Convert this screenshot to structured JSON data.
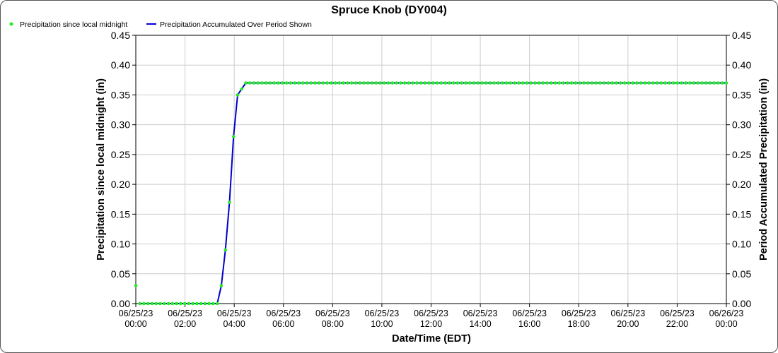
{
  "chart_data": {
    "type": "line",
    "title": "Spruce Knob (DY004)",
    "xlabel": "Date/Time (EDT)",
    "ylabel": "Precipitation since local midnight (in)",
    "y2label": "Period Accumulated Precipitation (in)",
    "ylim": [
      0,
      0.45
    ],
    "y_ticks": [
      "0.00",
      "0.05",
      "0.10",
      "0.15",
      "0.20",
      "0.25",
      "0.30",
      "0.35",
      "0.40",
      "0.45"
    ],
    "x_ticks": [
      {
        "date": "06/25/23",
        "time": "00:00"
      },
      {
        "date": "06/25/23",
        "time": "02:00"
      },
      {
        "date": "06/25/23",
        "time": "04:00"
      },
      {
        "date": "06/25/23",
        "time": "06:00"
      },
      {
        "date": "06/25/23",
        "time": "08:00"
      },
      {
        "date": "06/25/23",
        "time": "10:00"
      },
      {
        "date": "06/25/23",
        "time": "12:00"
      },
      {
        "date": "06/25/23",
        "time": "14:00"
      },
      {
        "date": "06/25/23",
        "time": "16:00"
      },
      {
        "date": "06/25/23",
        "time": "18:00"
      },
      {
        "date": "06/25/23",
        "time": "20:00"
      },
      {
        "date": "06/25/23",
        "time": "22:00"
      },
      {
        "date": "06/26/23",
        "time": "00:00"
      }
    ],
    "grid": true,
    "legend_position": "top-left",
    "sample_interval_minutes": 10,
    "series": [
      {
        "name": "Precipitation since local midnight",
        "style": "markers",
        "color": "#22ee22",
        "note_values": "one value every 10 minutes from 06/25/23 00:00 through 06/26/23 00:00",
        "values": [
          0.03,
          0,
          0,
          0,
          0,
          0,
          0,
          0,
          0,
          0,
          0,
          0,
          0,
          0,
          0,
          0,
          0,
          0,
          0,
          0,
          0,
          0.03,
          0.09,
          0.17,
          0.28,
          0.35,
          0.36,
          0.37,
          0.37,
          0.37,
          0.37,
          0.37,
          0.37,
          0.37,
          0.37,
          0.37,
          0.37,
          0.37,
          0.37,
          0.37,
          0.37,
          0.37,
          0.37,
          0.37,
          0.37,
          0.37,
          0.37,
          0.37,
          0.37,
          0.37,
          0.37,
          0.37,
          0.37,
          0.37,
          0.37,
          0.37,
          0.37,
          0.37,
          0.37,
          0.37,
          0.37,
          0.37,
          0.37,
          0.37,
          0.37,
          0.37,
          0.37,
          0.37,
          0.37,
          0.37,
          0.37,
          0.37,
          0.37,
          0.37,
          0.37,
          0.37,
          0.37,
          0.37,
          0.37,
          0.37,
          0.37,
          0.37,
          0.37,
          0.37,
          0.37,
          0.37,
          0.37,
          0.37,
          0.37,
          0.37,
          0.37,
          0.37,
          0.37,
          0.37,
          0.37,
          0.37,
          0.37,
          0.37,
          0.37,
          0.37,
          0.37,
          0.37,
          0.37,
          0.37,
          0.37,
          0.37,
          0.37,
          0.37,
          0.37,
          0.37,
          0.37,
          0.37,
          0.37,
          0.37,
          0.37,
          0.37,
          0.37,
          0.37,
          0.37,
          0.37,
          0.37,
          0.37,
          0.37,
          0.37,
          0.37,
          0.37,
          0.37,
          0.37,
          0.37,
          0.37,
          0.37,
          0.37,
          0.37,
          0.37,
          0.37,
          0.37,
          0.37,
          0.37,
          0.37,
          0.37,
          0.37,
          0.37,
          0.37,
          0.37,
          0.37,
          0.37
        ]
      },
      {
        "name": "Precipitation Accumulated Over Period Shown",
        "style": "line",
        "color": "#0000cc",
        "values": [
          null,
          0,
          0,
          0,
          0,
          0,
          0,
          0,
          0,
          0,
          0,
          0,
          0,
          0,
          0,
          0,
          0,
          0,
          0,
          0,
          0,
          0.03,
          0.09,
          0.17,
          0.28,
          0.35,
          0.36,
          0.37,
          0.37,
          0.37,
          0.37,
          0.37,
          0.37,
          0.37,
          0.37,
          0.37,
          0.37,
          0.37,
          0.37,
          0.37,
          0.37,
          0.37,
          0.37,
          0.37,
          0.37,
          0.37,
          0.37,
          0.37,
          0.37,
          0.37,
          0.37,
          0.37,
          0.37,
          0.37,
          0.37,
          0.37,
          0.37,
          0.37,
          0.37,
          0.37,
          0.37,
          0.37,
          0.37,
          0.37,
          0.37,
          0.37,
          0.37,
          0.37,
          0.37,
          0.37,
          0.37,
          0.37,
          0.37,
          0.37,
          0.37,
          0.37,
          0.37,
          0.37,
          0.37,
          0.37,
          0.37,
          0.37,
          0.37,
          0.37,
          0.37,
          0.37,
          0.37,
          0.37,
          0.37,
          0.37,
          0.37,
          0.37,
          0.37,
          0.37,
          0.37,
          0.37,
          0.37,
          0.37,
          0.37,
          0.37,
          0.37,
          0.37,
          0.37,
          0.37,
          0.37,
          0.37,
          0.37,
          0.37,
          0.37,
          0.37,
          0.37,
          0.37,
          0.37,
          0.37,
          0.37,
          0.37,
          0.37,
          0.37,
          0.37,
          0.37,
          0.37,
          0.37,
          0.37,
          0.37,
          0.37,
          0.37,
          0.37,
          0.37,
          0.37,
          0.37,
          0.37,
          0.37,
          0.37,
          0.37,
          0.37,
          0.37,
          0.37,
          0.37,
          0.37,
          0.37,
          0.37,
          0.37,
          0.37,
          0.37,
          0.37,
          0.37
        ]
      }
    ]
  }
}
